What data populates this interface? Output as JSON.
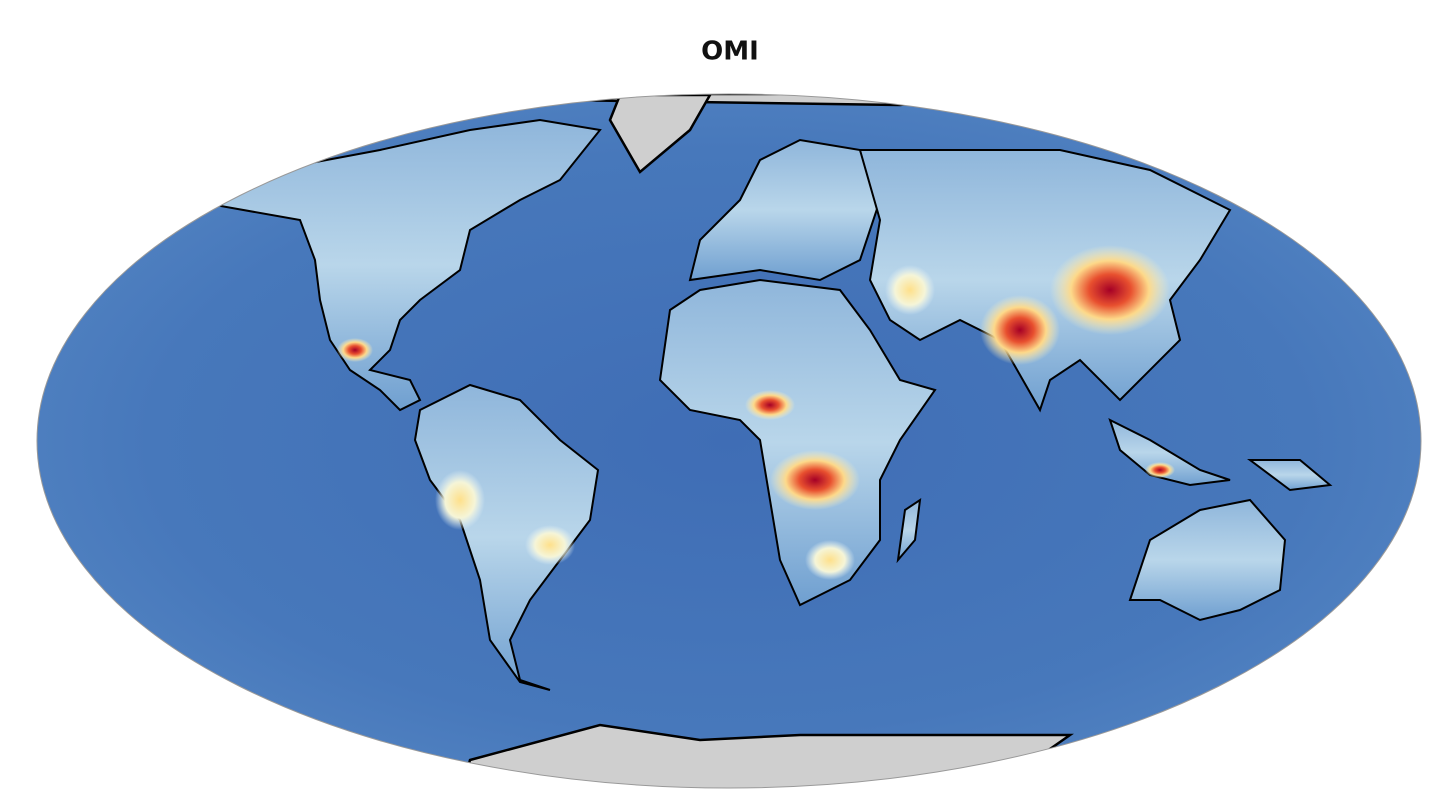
{
  "title": "OMI"
}
